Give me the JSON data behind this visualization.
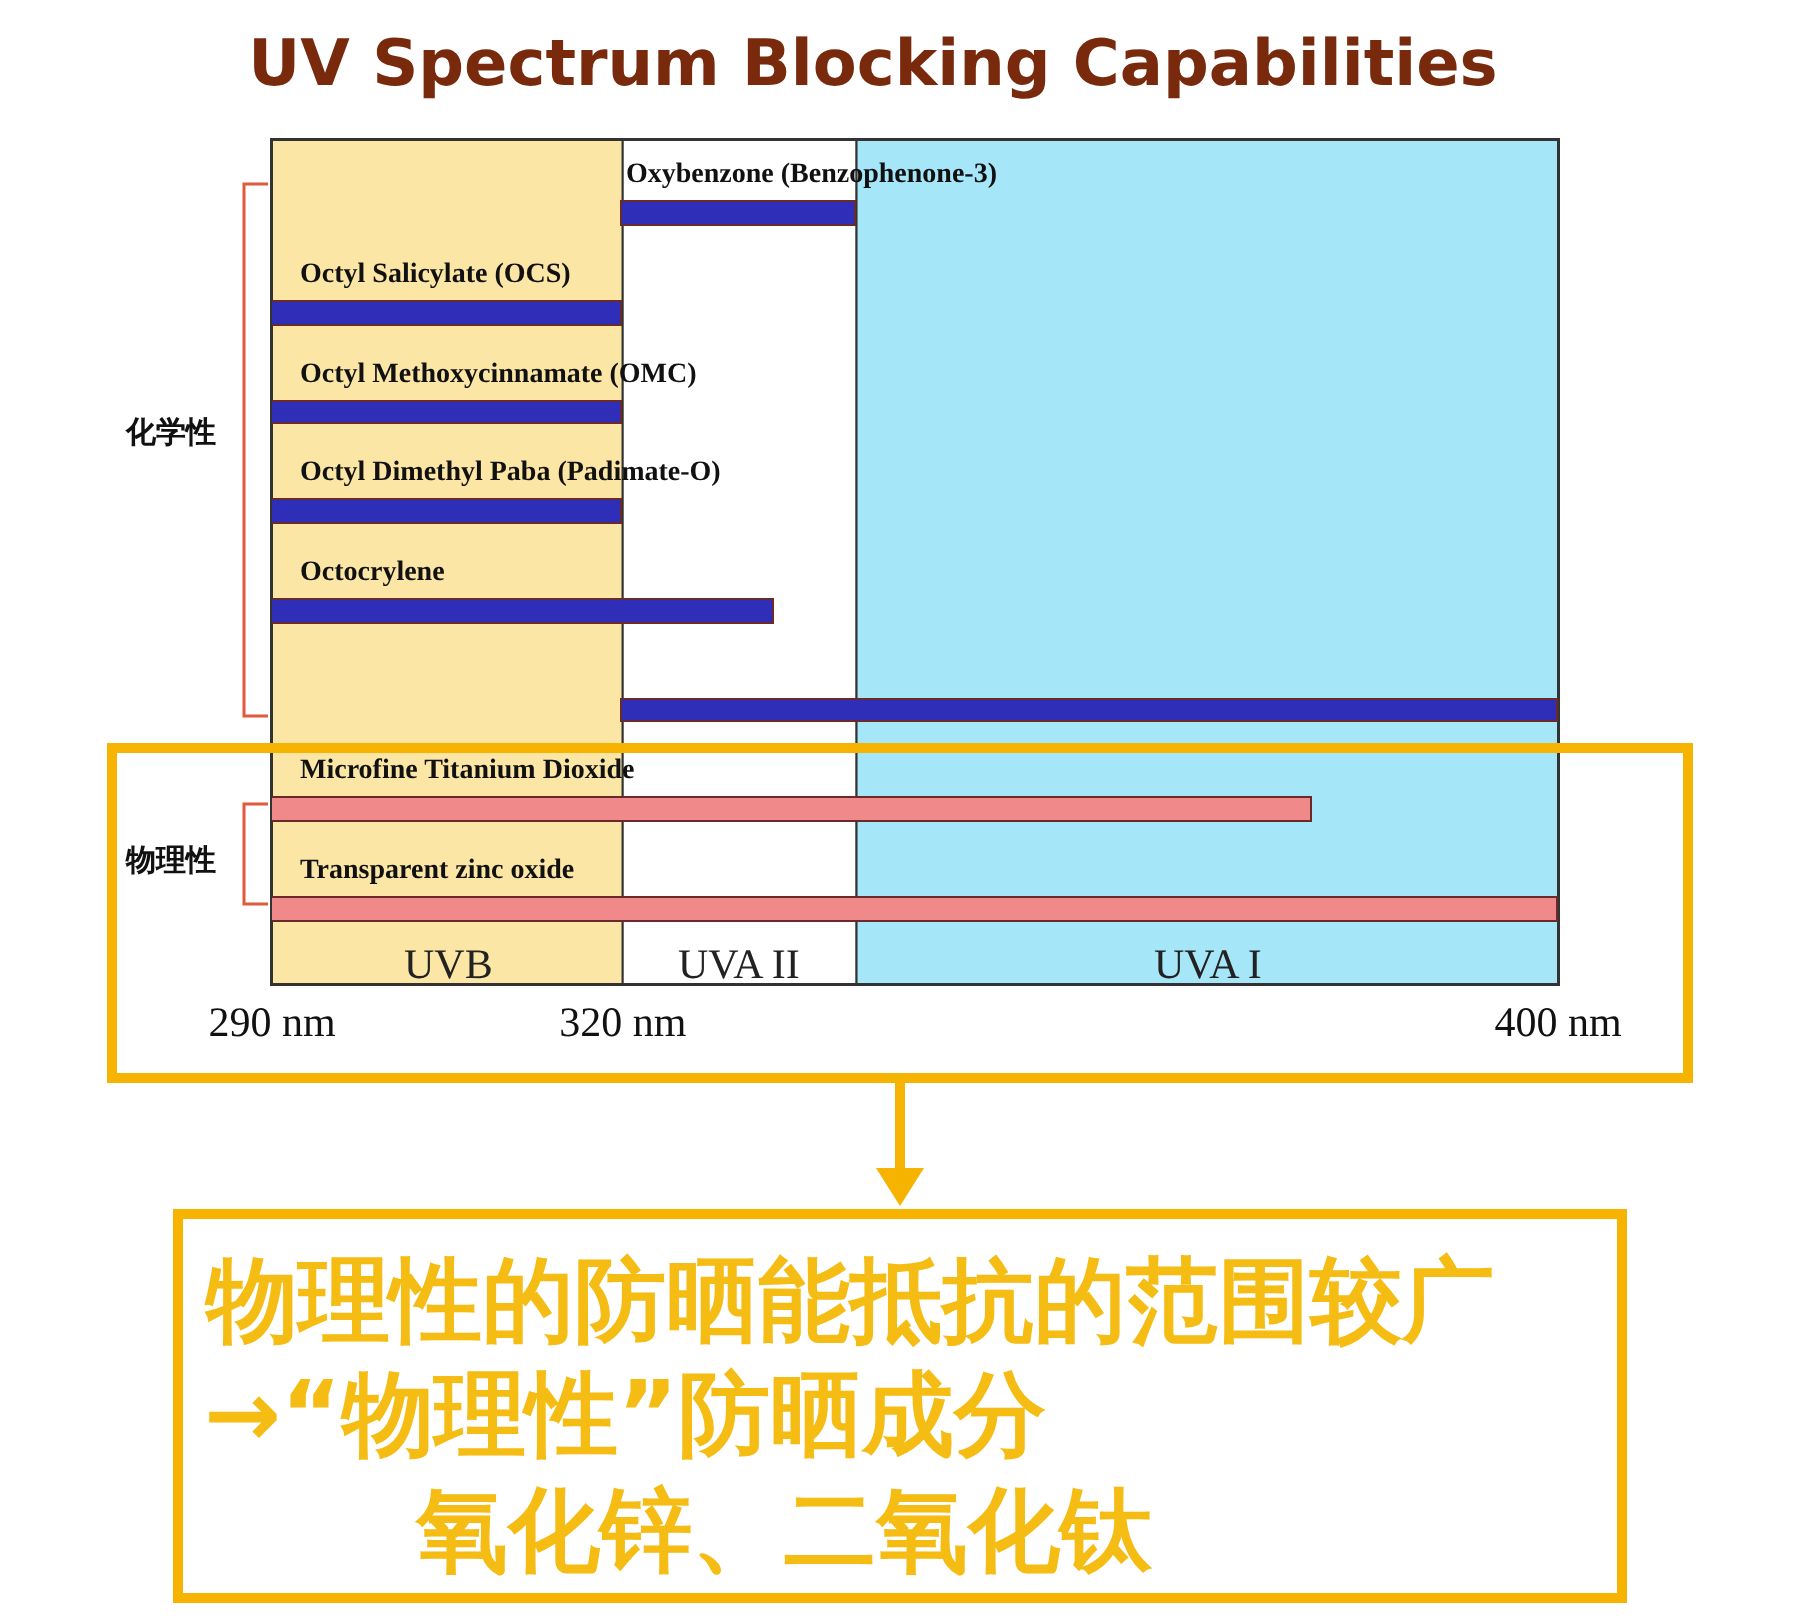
{
  "chart_data": {
    "type": "bar",
    "orientation": "horizontal",
    "title": "UV Spectrum Blocking Capabilities",
    "categories": [
      "Oxybenzone (Benzophenone-3)",
      "Octyl Salicylate (OCS)",
      "Octyl Methoxycinnamate (OMC)",
      "Octyl Dimethyl Paba (Padimate-O)",
      "Octocrylene",
      null,
      "Microfine Titanium Dioxide",
      "Transparent zinc oxide"
    ],
    "base": [
      320,
      290,
      290,
      290,
      290,
      320,
      290,
      290
    ],
    "values": [
      20,
      30,
      30,
      30,
      43,
      80,
      89,
      110
    ],
    "colors": [
      "#2e2eb8",
      "#2e2eb8",
      "#2e2eb8",
      "#2e2eb8",
      "#2e2eb8",
      "#2e2eb8",
      "#f08a8a",
      "#f08a8a"
    ],
    "xlim": [
      290,
      400
    ],
    "xticks": [
      {
        "value": 290,
        "label": "290 nm"
      },
      {
        "value": 320,
        "label": "320 nm"
      },
      {
        "value": 400,
        "label": "400 nm"
      }
    ],
    "tick_labels": "x",
    "grid": false,
    "legend": false,
    "bands": [
      {
        "axis": "x",
        "from": 290,
        "to": 320,
        "label": "UVB",
        "color": "#fbe6a6"
      },
      {
        "axis": "x",
        "from": 320,
        "to": 340,
        "label": "UVA II",
        "color": "#ffffff"
      },
      {
        "axis": "x",
        "from": 340,
        "to": 400,
        "label": "UVA I",
        "color": "#a6e6f9"
      }
    ],
    "annotations": [
      "化学性",
      "物理性",
      "物理性的防晒能抵抗的范围较广",
      "→“物理性”防晒成分",
      "氧化锌、二氧化钛"
    ]
  }
}
